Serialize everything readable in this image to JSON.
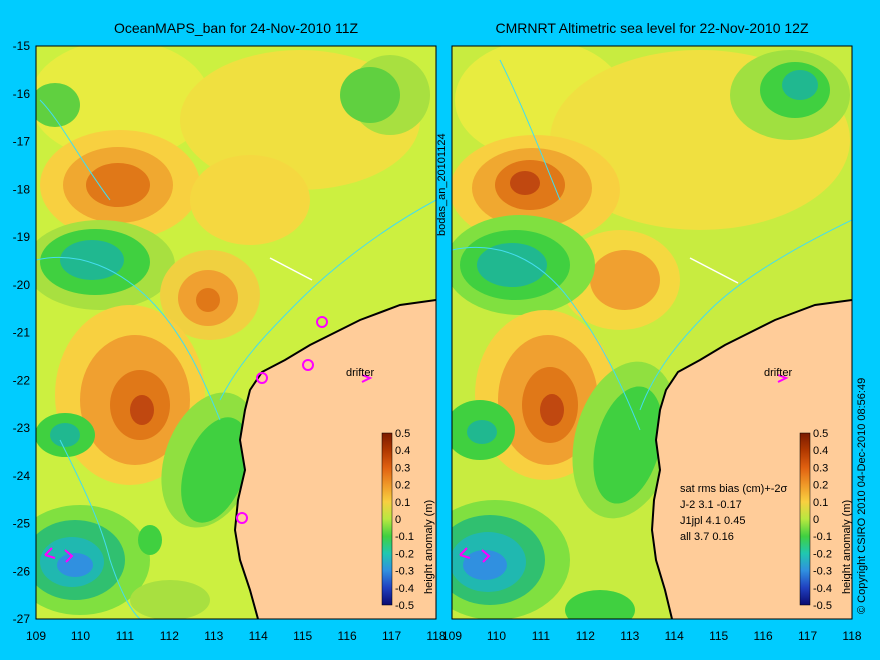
{
  "panels": [
    {
      "title": "OceanMAPS_ban for 24-Nov-2010 11Z",
      "drifter_label": "drifter",
      "colorbar_label": "height anomaly (m)"
    },
    {
      "title": "CMRNRT Altimetric sea level  for 22-Nov-2010 12Z",
      "drifter_label": "drifter",
      "colorbar_label": "height anomaly (m)",
      "stats": {
        "header": "sat rms bias (cm)+-2σ",
        "rows": [
          "J-2   3.1 -0.17",
          "J1jpl 4.1 0.45",
          "all 3.7 0.16"
        ]
      }
    }
  ],
  "side_label": "bodas_an_20101124",
  "copyright": "© Copyright CSIRO 2010   04-Dec-2010 08:56:49",
  "axes": {
    "x_ticks": [
      "109",
      "110",
      "111",
      "112",
      "113",
      "114",
      "115",
      "116",
      "117",
      "118"
    ],
    "y_ticks": [
      "-15",
      "-16",
      "-17",
      "-18",
      "-19",
      "-20",
      "-21",
      "-22",
      "-23",
      "-24",
      "-25",
      "-26",
      "-27"
    ]
  },
  "colorbar": {
    "ticks": [
      "0.5",
      "0.4",
      "0.3",
      "0.2",
      "0.1",
      "0",
      "-0.1",
      "-0.2",
      "-0.3",
      "-0.4",
      "-0.5"
    ],
    "colors": [
      "#7a1a00",
      "#a83200",
      "#d85a10",
      "#f08a20",
      "#f5c030",
      "#e8e840",
      "#a0e040",
      "#40d040",
      "#20c0a0",
      "#3090e0",
      "#2040c0",
      "#101080"
    ]
  },
  "land_color": "#ffcc99",
  "contour_color": "#44ddee"
}
